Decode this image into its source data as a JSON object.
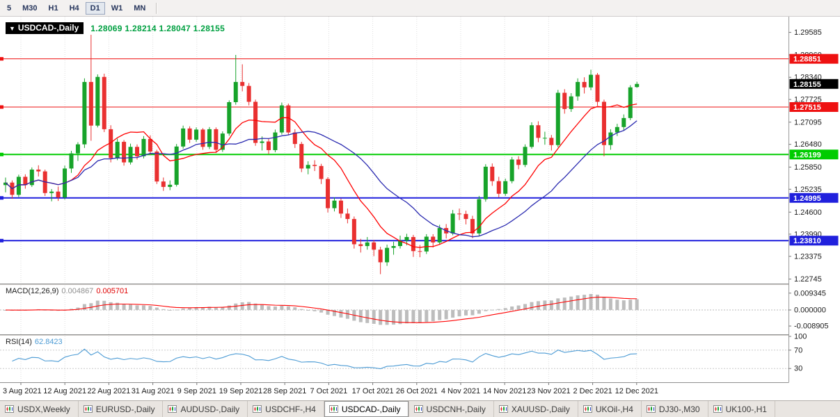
{
  "toolbar": {
    "items": [
      {
        "label": "5",
        "active": false
      },
      {
        "label": "M30",
        "active": false
      },
      {
        "label": "H1",
        "active": false
      },
      {
        "label": "H4",
        "active": false
      },
      {
        "label": "D1",
        "active": true
      },
      {
        "label": "W1",
        "active": false
      },
      {
        "label": "MN",
        "active": false
      }
    ]
  },
  "chart_header": {
    "symbol_label": "USDCAD-,Daily",
    "ohlc_text": "1.28069 1.28214 1.28047 1.28155",
    "ohlc_color": "#00a041"
  },
  "chart_data": {
    "type": "candlestick",
    "title": "USDCAD-,Daily",
    "price_range": [
      1.2262,
      1.3002
    ],
    "price_ticks": [
      "1.29585",
      "1.28960",
      "1.28340",
      "1.27725",
      "1.27095",
      "1.26480",
      "1.25850",
      "1.25235",
      "1.24600",
      "1.23990",
      "1.23375",
      "1.22745"
    ],
    "x_labels": [
      "3 Aug 2021",
      "12 Aug 2021",
      "22 Aug 2021",
      "31 Aug 2021",
      "9 Sep 2021",
      "19 Sep 2021",
      "28 Sep 2021",
      "7 Oct 2021",
      "17 Oct 2021",
      "26 Oct 2021",
      "4 Nov 2021",
      "14 Nov 2021",
      "23 Nov 2021",
      "2 Dec 2021",
      "12 Dec 2021"
    ],
    "colors": {
      "up": "#17a32a",
      "down": "#e93030",
      "grid": "#dedede",
      "axis_text": "#1a1a1a",
      "separator": "#d0cdc9",
      "background": "#ffffff"
    },
    "moving_averages": [
      {
        "name": "ma-fast",
        "period": 10,
        "color": "#ff0000"
      },
      {
        "name": "ma-slow",
        "period": 21,
        "color": "#2a2ab0"
      }
    ],
    "hlines": [
      {
        "price": 1.28851,
        "label": "1.28851",
        "color": "#ee1111",
        "width": 1
      },
      {
        "price": 1.27515,
        "label": "1.27515",
        "color": "#ee1111",
        "width": 1
      },
      {
        "price": 1.26199,
        "label": "1.26199",
        "color": "#00cc00",
        "width": 2
      },
      {
        "price": 1.24995,
        "label": "1.24995",
        "color": "#2020dd",
        "width": 2
      },
      {
        "price": 1.2381,
        "label": "1.23810",
        "color": "#2020dd",
        "width": 2
      }
    ],
    "current_price": {
      "label": "1.28155",
      "color": "#000000"
    },
    "macd": {
      "name": "MACD(12,26,9)",
      "value": "0.004867",
      "signal": "0.005701",
      "fast": 12,
      "slow": 26,
      "smoothing": 9,
      "ticks": [
        "0.009345",
        "0.000000",
        "-0.008905"
      ],
      "tick_values": [
        0.009345,
        0,
        -0.008905
      ],
      "range": [
        -0.0135,
        0.0135
      ],
      "hist_color": "#bdbdbd",
      "signal_color": "#ff0000"
    },
    "rsi": {
      "name": "RSI(14)",
      "value": "62.8423",
      "period": 14,
      "ticks": [
        "100",
        "70",
        "30"
      ],
      "tick_values": [
        100,
        70,
        30
      ],
      "levels": [
        70,
        30
      ],
      "range": [
        0,
        100
      ],
      "color": "#4a9ad4"
    },
    "candles": [
      [
        1.2535,
        1.2556,
        1.2515,
        1.2542
      ],
      [
        1.2542,
        1.2548,
        1.2497,
        1.2508
      ],
      [
        1.2508,
        1.2564,
        1.2502,
        1.2558
      ],
      [
        1.2558,
        1.2565,
        1.2525,
        1.2535
      ],
      [
        1.2535,
        1.2584,
        1.253,
        1.2578
      ],
      [
        1.2578,
        1.259,
        1.2559,
        1.2573
      ],
      [
        1.2573,
        1.2578,
        1.2505,
        1.2513
      ],
      [
        1.2513,
        1.2524,
        1.249,
        1.2517
      ],
      [
        1.2517,
        1.2531,
        1.2491,
        1.2501
      ],
      [
        1.2501,
        1.2589,
        1.2495,
        1.2581
      ],
      [
        1.2581,
        1.263,
        1.2569,
        1.2623
      ],
      [
        1.2623,
        1.2654,
        1.2602,
        1.2648
      ],
      [
        1.2648,
        1.2831,
        1.2638,
        1.2821
      ],
      [
        1.2821,
        1.2952,
        1.2658,
        1.27
      ],
      [
        1.27,
        1.2842,
        1.2695,
        1.2835
      ],
      [
        1.2835,
        1.2844,
        1.2682,
        1.269
      ],
      [
        1.269,
        1.2701,
        1.2598,
        1.261
      ],
      [
        1.261,
        1.2664,
        1.2604,
        1.2655
      ],
      [
        1.2655,
        1.266,
        1.2589,
        1.2598
      ],
      [
        1.2598,
        1.265,
        1.2592,
        1.2641
      ],
      [
        1.2641,
        1.2648,
        1.2606,
        1.2615
      ],
      [
        1.2615,
        1.2671,
        1.2609,
        1.2663
      ],
      [
        1.2663,
        1.2673,
        1.2618,
        1.2628
      ],
      [
        1.2628,
        1.2633,
        1.2538,
        1.2545
      ],
      [
        1.2545,
        1.2556,
        1.2519,
        1.253
      ],
      [
        1.253,
        1.2548,
        1.2521,
        1.2536
      ],
      [
        1.2536,
        1.2649,
        1.2531,
        1.2642
      ],
      [
        1.2642,
        1.27,
        1.2636,
        1.2692
      ],
      [
        1.2692,
        1.2698,
        1.2652,
        1.2661
      ],
      [
        1.2661,
        1.2695,
        1.2655,
        1.2689
      ],
      [
        1.2689,
        1.2693,
        1.2633,
        1.2641
      ],
      [
        1.2641,
        1.2696,
        1.2635,
        1.269
      ],
      [
        1.269,
        1.2695,
        1.2624,
        1.2633
      ],
      [
        1.2633,
        1.2684,
        1.2627,
        1.2678
      ],
      [
        1.2678,
        1.277,
        1.2672,
        1.2765
      ],
      [
        1.2765,
        1.2896,
        1.2758,
        1.2821
      ],
      [
        1.2821,
        1.287,
        1.2795,
        1.281
      ],
      [
        1.281,
        1.2818,
        1.2756,
        1.2766
      ],
      [
        1.2766,
        1.2772,
        1.2644,
        1.2652
      ],
      [
        1.2652,
        1.267,
        1.2631,
        1.2656
      ],
      [
        1.2656,
        1.2664,
        1.2621,
        1.2632
      ],
      [
        1.2632,
        1.2689,
        1.2626,
        1.2681
      ],
      [
        1.2681,
        1.2764,
        1.2675,
        1.2756
      ],
      [
        1.2756,
        1.2761,
        1.2673,
        1.2681
      ],
      [
        1.2681,
        1.269,
        1.2638,
        1.2649
      ],
      [
        1.2649,
        1.2655,
        1.2571,
        1.2581
      ],
      [
        1.2581,
        1.2601,
        1.2565,
        1.2591
      ],
      [
        1.2591,
        1.2604,
        1.2574,
        1.2588
      ],
      [
        1.2588,
        1.2594,
        1.2538,
        1.2552
      ],
      [
        1.2552,
        1.2557,
        1.2459,
        1.2471
      ],
      [
        1.2471,
        1.2501,
        1.2462,
        1.2492
      ],
      [
        1.2492,
        1.2498,
        1.2444,
        1.2456
      ],
      [
        1.2456,
        1.247,
        1.2429,
        1.2441
      ],
      [
        1.2441,
        1.2448,
        1.2359,
        1.2371
      ],
      [
        1.2371,
        1.2386,
        1.2348,
        1.2366
      ],
      [
        1.2366,
        1.2391,
        1.2356,
        1.2376
      ],
      [
        1.2376,
        1.2383,
        1.2338,
        1.2356
      ],
      [
        1.2356,
        1.2364,
        1.2288,
        1.2321
      ],
      [
        1.2321,
        1.237,
        1.2311,
        1.2361
      ],
      [
        1.2361,
        1.2378,
        1.2342,
        1.2366
      ],
      [
        1.2366,
        1.2395,
        1.2359,
        1.2381
      ],
      [
        1.2381,
        1.24,
        1.2368,
        1.2391
      ],
      [
        1.2391,
        1.2397,
        1.2336,
        1.2352
      ],
      [
        1.2352,
        1.2369,
        1.2335,
        1.2351
      ],
      [
        1.2351,
        1.2399,
        1.2344,
        1.2392
      ],
      [
        1.2392,
        1.2399,
        1.2362,
        1.2376
      ],
      [
        1.2376,
        1.2425,
        1.237,
        1.2416
      ],
      [
        1.2416,
        1.2427,
        1.2387,
        1.2401
      ],
      [
        1.2401,
        1.2466,
        1.2396,
        1.2456
      ],
      [
        1.2456,
        1.247,
        1.2438,
        1.2455
      ],
      [
        1.2455,
        1.2464,
        1.2426,
        1.2441
      ],
      [
        1.2441,
        1.245,
        1.2388,
        1.2401
      ],
      [
        1.2401,
        1.2505,
        1.2395,
        1.2496
      ],
      [
        1.2496,
        1.2593,
        1.2489,
        1.2586
      ],
      [
        1.2586,
        1.2595,
        1.2533,
        1.2546
      ],
      [
        1.2546,
        1.2558,
        1.2501,
        1.2511
      ],
      [
        1.2511,
        1.2553,
        1.2505,
        1.2546
      ],
      [
        1.2546,
        1.2613,
        1.254,
        1.2606
      ],
      [
        1.2606,
        1.2615,
        1.2579,
        1.2591
      ],
      [
        1.2591,
        1.2648,
        1.2585,
        1.2641
      ],
      [
        1.2641,
        1.2709,
        1.2636,
        1.2701
      ],
      [
        1.2701,
        1.2712,
        1.2654,
        1.2666
      ],
      [
        1.2666,
        1.2683,
        1.2647,
        1.2666
      ],
      [
        1.2666,
        1.2674,
        1.2631,
        1.2646
      ],
      [
        1.2646,
        1.2799,
        1.264,
        1.2791
      ],
      [
        1.2791,
        1.2801,
        1.2733,
        1.2746
      ],
      [
        1.2746,
        1.279,
        1.2738,
        1.2781
      ],
      [
        1.2781,
        1.2831,
        1.2769,
        1.2821
      ],
      [
        1.2821,
        1.2834,
        1.2789,
        1.2806
      ],
      [
        1.2806,
        1.2855,
        1.2798,
        1.2841
      ],
      [
        1.2841,
        1.2846,
        1.2755,
        1.2766
      ],
      [
        1.2766,
        1.2772,
        1.2615,
        1.2646
      ],
      [
        1.2646,
        1.269,
        1.2633,
        1.2681
      ],
      [
        1.2681,
        1.2705,
        1.2671,
        1.2696
      ],
      [
        1.2696,
        1.2731,
        1.2687,
        1.2721
      ],
      [
        1.2721,
        1.2812,
        1.2715,
        1.2806
      ],
      [
        1.28069,
        1.28214,
        1.28047,
        1.28155
      ]
    ]
  },
  "tabs": {
    "items": [
      {
        "label": "USDX,Weekly",
        "active": false
      },
      {
        "label": "EURUSD-,Daily",
        "active": false
      },
      {
        "label": "AUDUSD-,Daily",
        "active": false
      },
      {
        "label": "USDCHF-,H4",
        "active": false
      },
      {
        "label": "USDCAD-,Daily",
        "active": true
      },
      {
        "label": "USDCNH-,Daily",
        "active": false
      },
      {
        "label": "XAUUSD-,Daily",
        "active": false
      },
      {
        "label": "UKOil-,H4",
        "active": false
      },
      {
        "label": "DJ30-,M30",
        "active": false
      },
      {
        "label": "UK100-,H1",
        "active": false
      }
    ]
  }
}
